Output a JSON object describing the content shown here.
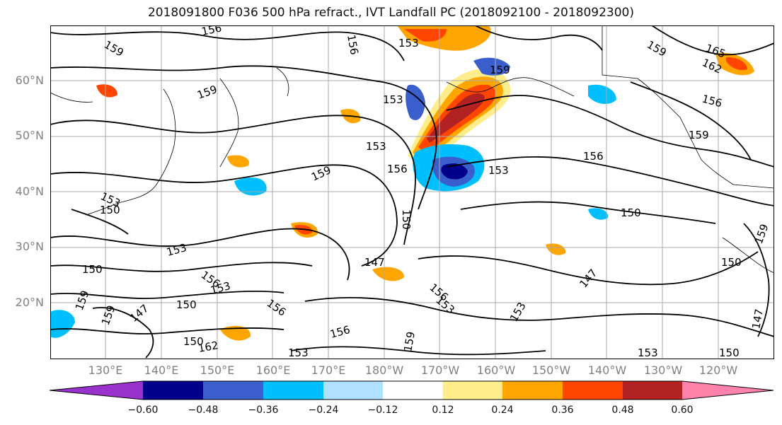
{
  "title": "2018091800 F036 500 hPa refract., IVT Landfall PC (2018092100 - 2018092300)",
  "map": {
    "lat_labels": [
      "60°N",
      "50°N",
      "40°N",
      "30°N",
      "20°N"
    ],
    "lon_labels": [
      "130°E",
      "140°E",
      "150°E",
      "160°E",
      "170°E",
      "180°W",
      "170°W",
      "160°W",
      "150°W",
      "140°W",
      "130°W",
      "120°W"
    ],
    "contour_labels": [
      "156",
      "159",
      "153",
      "159",
      "156",
      "153",
      "159",
      "159",
      "165",
      "162",
      "156",
      "159",
      "153",
      "156",
      "153",
      "159",
      "156",
      "150",
      "153",
      "150",
      "150",
      "147",
      "153",
      "150",
      "156",
      "153",
      "147",
      "150",
      "159",
      "159",
      "156",
      "162",
      "153",
      "150",
      "156",
      "159",
      "147",
      "153",
      "153",
      "150",
      "159",
      "150",
      "147",
      "153",
      "156"
    ],
    "colors": {
      "neg_060": "#9932CC",
      "neg_048": "#00008B",
      "neg_036": "#3A5FCD",
      "neg_024": "#00BFFF",
      "neg_012": "#B0E2FF",
      "zero": "#FFFFFF",
      "pos_012": "#FFEC8B",
      "pos_024": "#FFA500",
      "pos_036": "#FF4500",
      "pos_048": "#B22222",
      "pos_060": "#FF82AB",
      "contour": "#000000",
      "grid": "#A9A9A9"
    }
  },
  "colorbar": {
    "tick_labels": [
      "−0.60",
      "−0.48",
      "−0.36",
      "−0.24",
      "−0.12",
      "0.12",
      "0.24",
      "0.36",
      "0.48",
      "0.60"
    ],
    "colors": [
      "#9932CC",
      "#00008B",
      "#3A5FCD",
      "#00BFFF",
      "#B0E2FF",
      "#FFFFFF",
      "#FFEC8B",
      "#FFA500",
      "#FF4500",
      "#B22222",
      "#FF82AB"
    ]
  }
}
